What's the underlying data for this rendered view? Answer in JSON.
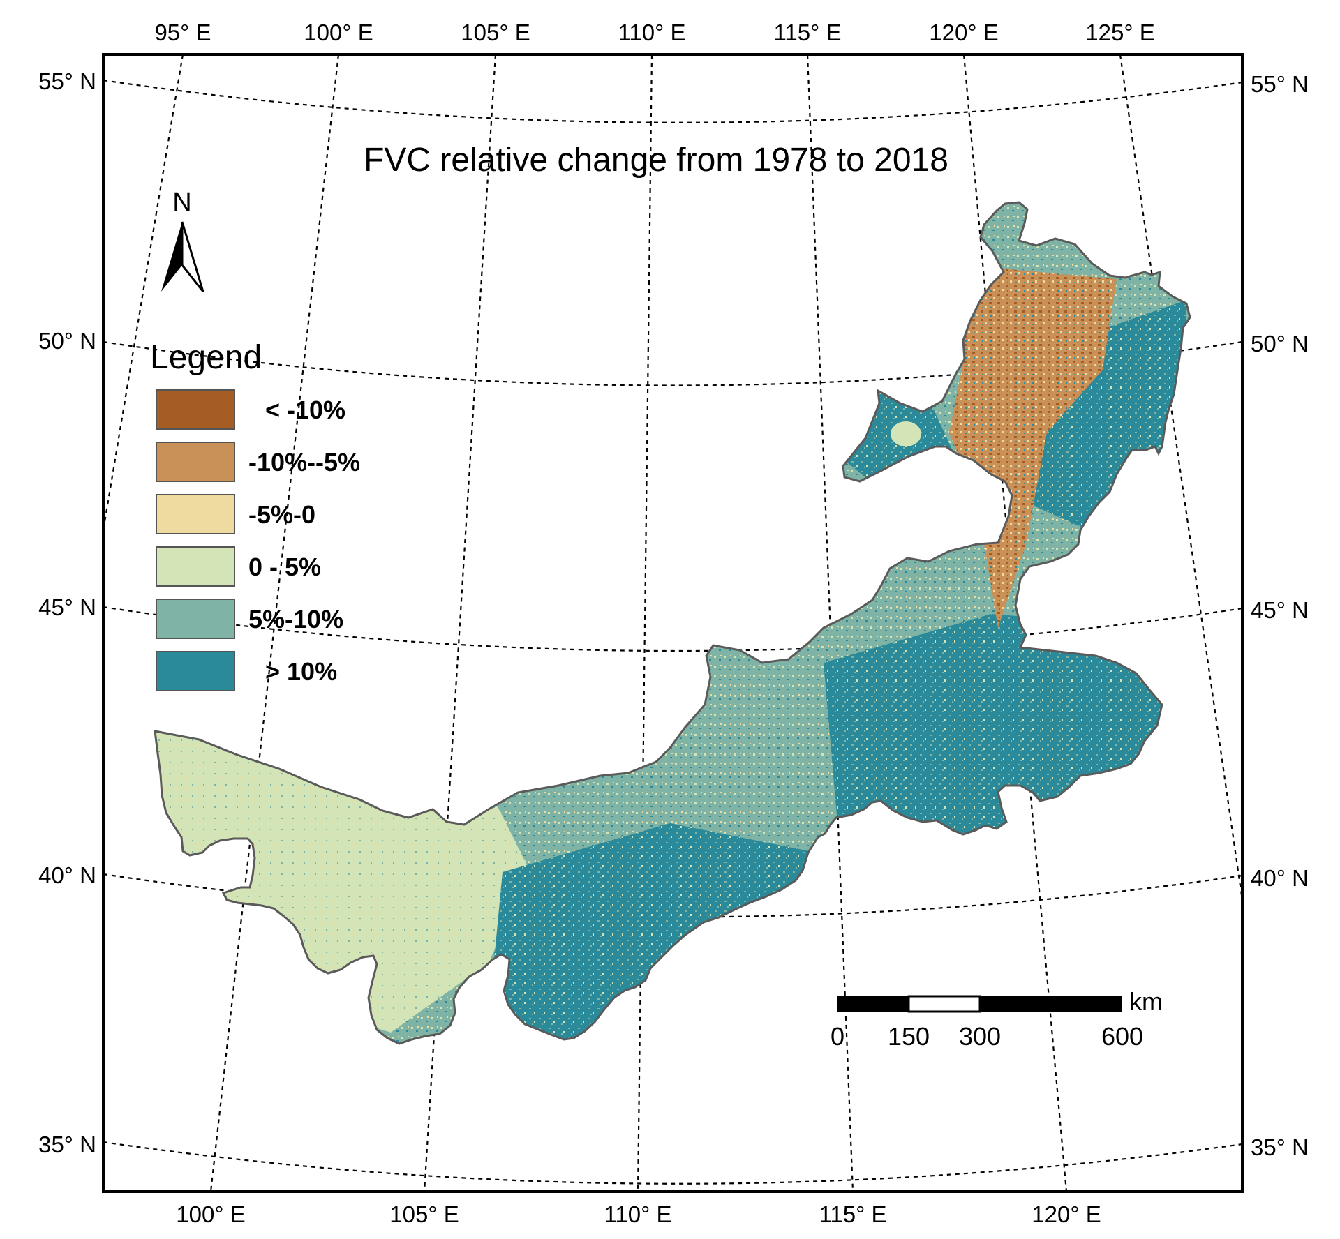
{
  "map": {
    "title": "FVC relative change from 1978 to 2018",
    "north_arrow_label": "N",
    "legend": {
      "heading": "Legend",
      "items": [
        {
          "label": "< -10%",
          "color": "#a65d24"
        },
        {
          "label": "-10%--5%",
          "color": "#c99057"
        },
        {
          "label": "-5%-0",
          "color": "#efdba0"
        },
        {
          "label": "0 - 5%",
          "color": "#d3e4b7"
        },
        {
          "label": "5%-10%",
          "color": "#7fb3a5"
        },
        {
          "label": "> 10%",
          "color": "#2b8a99"
        }
      ]
    },
    "scale_bar": {
      "unit": "km",
      "ticks": [
        "0",
        "150",
        "300",
        "600"
      ]
    },
    "graticule": {
      "top_labels": [
        "95° E",
        "100° E",
        "105° E",
        "110° E",
        "115° E",
        "120° E",
        "125° E"
      ],
      "bottom_labels": [
        "100° E",
        "105° E",
        "110° E",
        "115° E",
        "120° E"
      ],
      "left_labels": [
        "55° N",
        "50° N",
        "45° N",
        "40° N",
        "35° N"
      ],
      "right_labels": [
        "55° N",
        "50° N",
        "45° N",
        "40° N",
        "35° N"
      ]
    },
    "region_colors": {
      "outline": "#5a5a5a"
    }
  }
}
